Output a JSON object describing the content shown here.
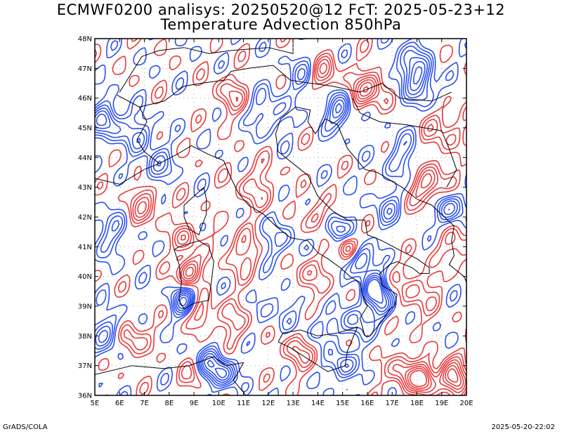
{
  "header": {
    "line1": "ECMWF0200 analisys: 20250520@12 FcT: 2025-05-23+12",
    "line2": "Temperature Advection 850hPa"
  },
  "axes": {
    "lon_labels": [
      "5E",
      "6E",
      "7E",
      "8E",
      "9E",
      "10E",
      "11E",
      "12E",
      "13E",
      "14E",
      "15E",
      "16E",
      "17E",
      "18E",
      "19E",
      "20E"
    ],
    "lat_labels": [
      "36N",
      "37N",
      "38N",
      "39N",
      "40N",
      "41N",
      "42N",
      "43N",
      "44N",
      "45N",
      "46N",
      "47N",
      "48N"
    ],
    "lon_range": [
      5,
      20
    ],
    "lat_range": [
      36,
      48
    ]
  },
  "colors": {
    "warm_advection": "#e8393b",
    "cold_advection": "#2b4ff0",
    "coast": "#000000",
    "grid": "#999999"
  },
  "footer": {
    "left": "GrADS/COLA",
    "right": "2025-05-20-22:02"
  }
}
